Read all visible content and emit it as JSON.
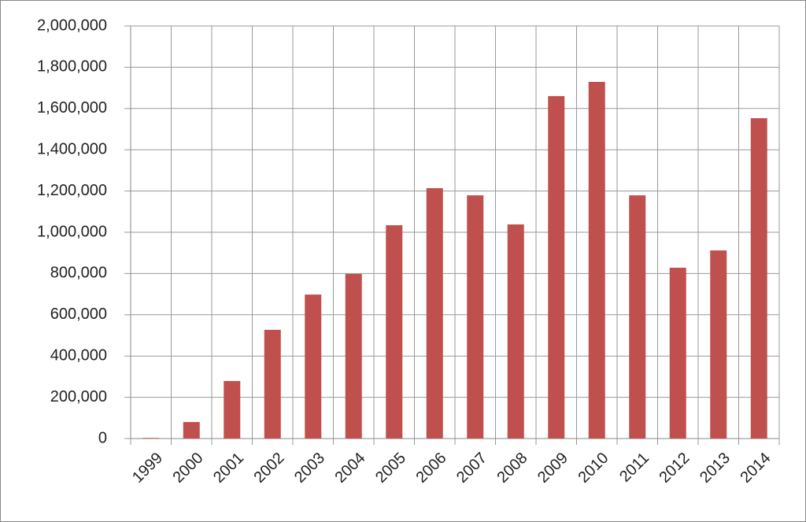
{
  "chart_data": {
    "type": "bar",
    "categories": [
      "1999",
      "2000",
      "2001",
      "2002",
      "2003",
      "2004",
      "2005",
      "2006",
      "2007",
      "2008",
      "2009",
      "2010",
      "2011",
      "2012",
      "2013",
      "2014"
    ],
    "values": [
      3000,
      80000,
      279000,
      527000,
      698000,
      798000,
      1034000,
      1214000,
      1179000,
      1038000,
      1660000,
      1729000,
      1179000,
      828000,
      912000,
      1553000
    ],
    "color": "#c0504d",
    "ylim": [
      0,
      2000000
    ],
    "yticks": [
      0,
      {
        "value": 200000,
        "label": "200,000"
      },
      {
        "value": 400000,
        "label": "400,000"
      },
      {
        "value": 600000,
        "label": "600,000"
      },
      {
        "value": 800000,
        "label": "800,000"
      },
      {
        "value": 1000000,
        "label": "1,000,000"
      },
      {
        "value": 1200000,
        "label": "1,200,000"
      },
      {
        "value": 1400000,
        "label": "1,400,000"
      },
      {
        "value": 1600000,
        "label": "1,600,000"
      },
      {
        "value": 1800000,
        "label": "1,800,000"
      },
      {
        "value": 2000000,
        "label": "2,000,000"
      }
    ],
    "grid": true
  }
}
